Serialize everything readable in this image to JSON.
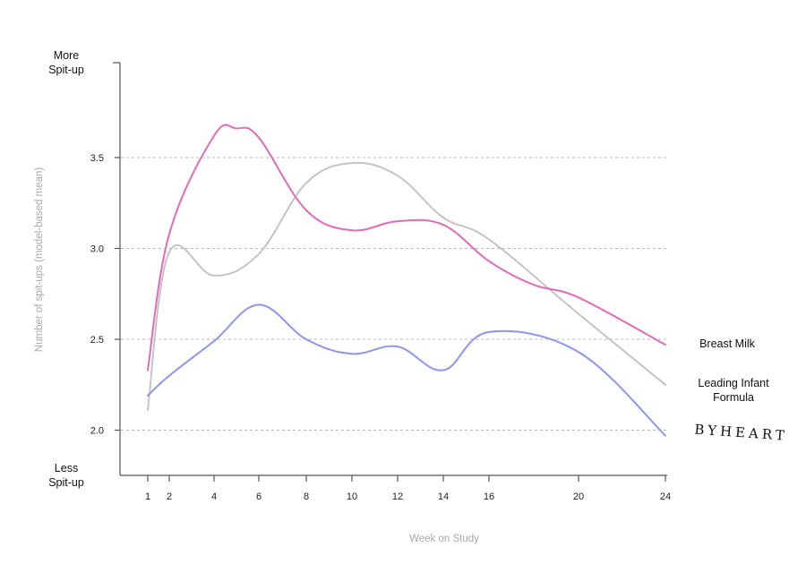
{
  "chart_data": {
    "type": "line",
    "title": "",
    "xlabel": "Week on Study",
    "ylabel": "Number of spit-ups (model-based mean)",
    "x_ticks": [
      1,
      2,
      4,
      6,
      8,
      10,
      12,
      14,
      16,
      20,
      24
    ],
    "y_ticks": [
      2.0,
      2.5,
      3.0,
      3.5
    ],
    "y_tick_labels": [
      "2.0",
      "2.5",
      "3.0",
      "3.5"
    ],
    "ylim": [
      1.75,
      4.05
    ],
    "y_top_label": [
      "More",
      "Spit-up"
    ],
    "y_bottom_label": [
      "Less",
      "Spit-up"
    ],
    "grid": "horizontal-dashed",
    "series": [
      {
        "name": "Breast Milk",
        "label_lines": [
          "Breast Milk"
        ],
        "color": "#e06bb8",
        "points": [
          [
            1,
            2.33
          ],
          [
            2,
            3.08
          ],
          [
            4,
            3.62
          ],
          [
            5,
            3.66
          ],
          [
            6,
            3.61
          ],
          [
            8,
            3.21
          ],
          [
            10,
            3.1
          ],
          [
            12,
            3.15
          ],
          [
            14,
            3.13
          ],
          [
            16,
            2.93
          ],
          [
            18,
            2.8
          ],
          [
            20,
            2.73
          ],
          [
            24,
            2.47
          ]
        ]
      },
      {
        "name": "Leading Infant Formula",
        "label_lines": [
          "Leading Infant",
          "Formula"
        ],
        "color": "#c4c4c4",
        "points": [
          [
            1,
            2.11
          ],
          [
            2,
            2.98
          ],
          [
            4,
            2.85
          ],
          [
            6,
            2.97
          ],
          [
            8,
            3.36
          ],
          [
            10,
            3.47
          ],
          [
            12,
            3.4
          ],
          [
            14,
            3.17
          ],
          [
            16,
            3.05
          ],
          [
            20,
            2.64
          ],
          [
            24,
            2.25
          ]
        ]
      },
      {
        "name": "BYHEART",
        "label_lines": [
          "BYHEART"
        ],
        "color": "#8d95ee",
        "points": [
          [
            1,
            2.19
          ],
          [
            2,
            2.3
          ],
          [
            4,
            2.49
          ],
          [
            6,
            2.69
          ],
          [
            8,
            2.5
          ],
          [
            10,
            2.42
          ],
          [
            12,
            2.46
          ],
          [
            14,
            2.33
          ],
          [
            16,
            2.54
          ],
          [
            20,
            2.43
          ],
          [
            24,
            1.97
          ]
        ]
      }
    ]
  }
}
